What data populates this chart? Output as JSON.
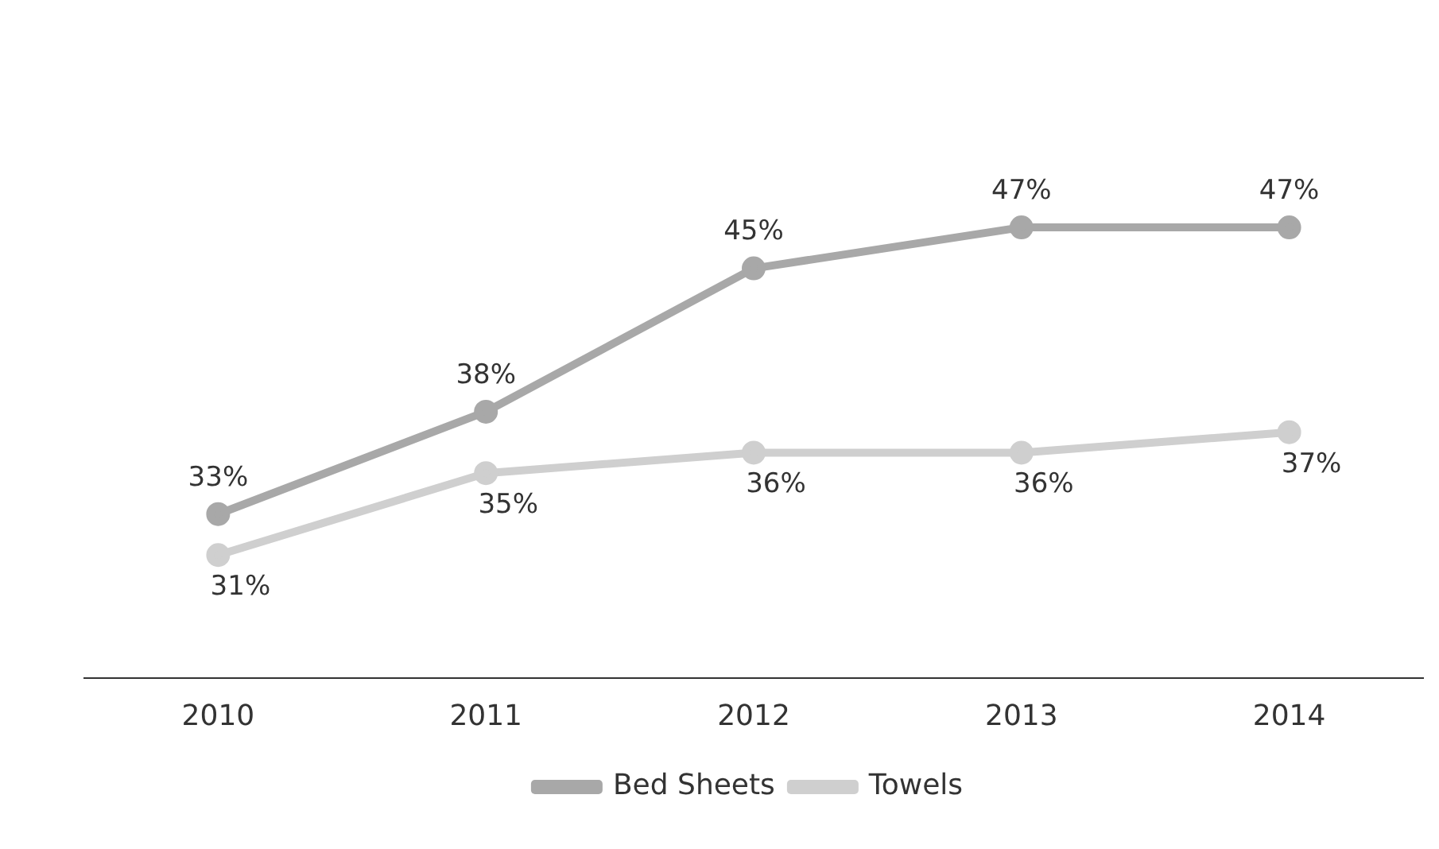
{
  "chart_data": {
    "type": "line",
    "categories": [
      "2010",
      "2011",
      "2012",
      "2013",
      "2014"
    ],
    "series": [
      {
        "name": "Bed Sheets",
        "color": "#a8a8a8",
        "values": [
          33,
          38,
          45,
          47,
          47
        ],
        "value_labels": [
          "33%",
          "38%",
          "45%",
          "47%",
          "47%"
        ]
      },
      {
        "name": "Towels",
        "color": "#cfcfcf",
        "values": [
          31,
          35,
          36,
          36,
          37
        ],
        "value_labels": [
          "31%",
          "35%",
          "36%",
          "36%",
          "37%"
        ]
      }
    ],
    "tick_labels": "x",
    "legend": "bottom",
    "marker": "circle",
    "line_style": "solid",
    "grid": false
  }
}
